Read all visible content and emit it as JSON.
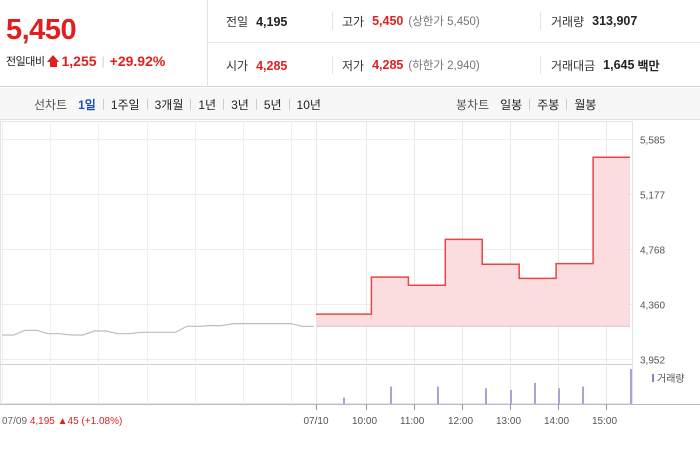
{
  "quote": {
    "price": "5,450",
    "change_label": "전일대비",
    "change_icon": "up-triangle-icon",
    "change_value": "1,255",
    "change_percent": "+29.92%",
    "up_color": "#e02020"
  },
  "stats": {
    "prev_close": {
      "label": "전일",
      "value": "4,195"
    },
    "high": {
      "label": "고가",
      "value": "5,450",
      "sub": "(상한가 5,450)"
    },
    "volume": {
      "label": "거래량",
      "value": "313,907"
    },
    "open": {
      "label": "시가",
      "value": "4,285"
    },
    "low": {
      "label": "저가",
      "value": "4,285",
      "sub": "(하한가 2,940)"
    },
    "trade_value": {
      "label": "거래대금",
      "value": "1,645",
      "unit": "백만"
    }
  },
  "line_tabs": {
    "title": "선차트",
    "items": [
      "1일",
      "1주일",
      "3개월",
      "1년",
      "3년",
      "5년",
      "10년"
    ],
    "active": "1일"
  },
  "candle_tabs": {
    "title": "봉차트",
    "items": [
      "일봉",
      "주봉",
      "월봉"
    ]
  },
  "chart_data": {
    "type": "line",
    "y_ticks": [
      "5,585",
      "5,177",
      "4,768",
      "4,360",
      "3,952"
    ],
    "y_tick_values": [
      5585,
      5177,
      4768,
      4360,
      3952
    ],
    "ylim": [
      3952,
      5585
    ],
    "x_ticks": [
      "07/10",
      "10:00",
      "11:00",
      "12:00",
      "13:00",
      "14:00",
      "15:00"
    ],
    "prev_day": {
      "label": "07/09",
      "close": "4,195",
      "change": "▲45",
      "change_pct": "(+1.08%)",
      "values": [
        4130,
        4130,
        4165,
        4165,
        4140,
        4140,
        4130,
        4130,
        4160,
        4160,
        4140,
        4140,
        4150,
        4150,
        4150,
        4150,
        4195,
        4195,
        4200,
        4200,
        4215,
        4215,
        4215,
        4215,
        4215,
        4215,
        4195,
        4195
      ]
    },
    "today": {
      "values": [
        4285,
        4285,
        4285,
        4560,
        4560,
        4500,
        4500,
        4840,
        4840,
        4655,
        4655,
        4550,
        4550,
        4660,
        4660,
        5450,
        5450,
        5450
      ]
    },
    "baseline": 4195,
    "volume_label": "거래량",
    "volume_values": [
      0.18,
      0.5,
      0.5,
      0.45,
      0.4,
      0.6,
      0.45,
      0.5,
      1.0
    ],
    "line_color": "#e84545",
    "fill_color": "#fbd9dc",
    "grid": true
  }
}
